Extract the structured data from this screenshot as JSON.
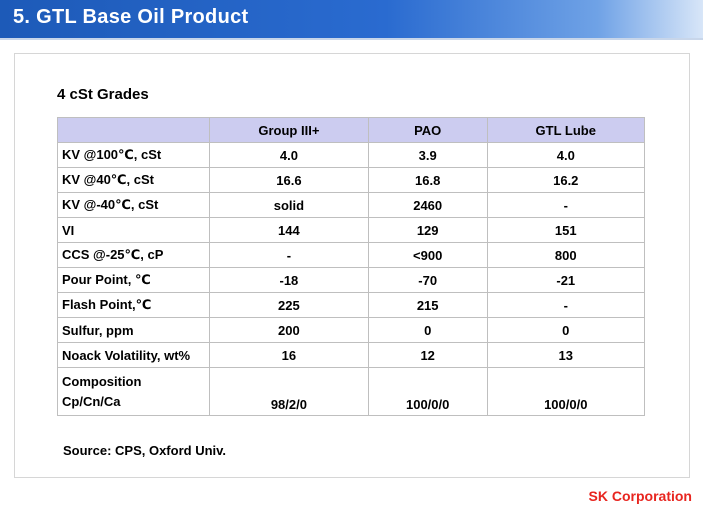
{
  "header": {
    "title": "5. GTL Base Oil Product"
  },
  "section": {
    "subtitle": "4 cSt Grades"
  },
  "table": {
    "columns": [
      "",
      "Group III+",
      "PAO",
      "GTL Lube"
    ],
    "rows": [
      {
        "property": "KV @100℃, cSt",
        "values": [
          "4.0",
          "3.9",
          "4.0"
        ]
      },
      {
        "property": "KV @40℃, cSt",
        "values": [
          "16.6",
          "16.8",
          "16.2"
        ]
      },
      {
        "property": "KV @-40℃, cSt",
        "values": [
          "solid",
          "2460",
          "-"
        ]
      },
      {
        "property": "VI",
        "values": [
          "144",
          "129",
          "151"
        ]
      },
      {
        "property": "CCS @-25℃, cP",
        "values": [
          "-",
          "<900",
          "800"
        ]
      },
      {
        "property": "Pour Point, ℃",
        "values": [
          "-18",
          "-70",
          "-21"
        ]
      },
      {
        "property": "Flash Point,℃",
        "values": [
          "225",
          "215",
          "-"
        ]
      },
      {
        "property": "Sulfur, ppm",
        "values": [
          "200",
          "0",
          "0"
        ]
      },
      {
        "property": "Noack Volatility, wt%",
        "values": [
          "16",
          "12",
          "13"
        ]
      }
    ],
    "composition": {
      "label_line1": "Composition",
      "label_line2": "Cp/Cn/Ca",
      "values": [
        "98/2/0",
        "100/0/0",
        "100/0/0"
      ]
    }
  },
  "footer": {
    "source": "Source: CPS, Oxford Univ.",
    "company": "SK Corporation"
  },
  "colors": {
    "title_bar": "#2a6bd0",
    "header_row": "#ccccf0",
    "company_text": "#e8251f"
  }
}
